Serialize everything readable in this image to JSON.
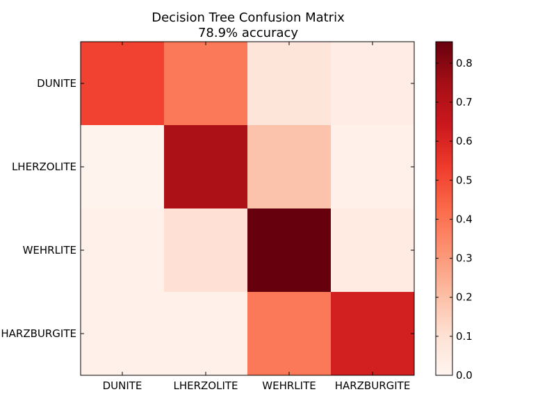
{
  "chart_data": {
    "type": "heatmap",
    "title": "Decision Tree Confusion Matrix",
    "subtitle": "78.9% accuracy",
    "x_categories": [
      "DUNITE",
      "LHERZOLITE",
      "WEHRLITE",
      "HARZBURGITE"
    ],
    "y_categories": [
      "DUNITE",
      "LHERZOLITE",
      "WEHRLITE",
      "HARZBURGITE"
    ],
    "values": [
      [
        0.52,
        0.39,
        0.08,
        0.04
      ],
      [
        0.01,
        0.73,
        0.19,
        0.02
      ],
      [
        0.02,
        0.1,
        0.86,
        0.05
      ],
      [
        0.02,
        0.02,
        0.39,
        0.62
      ]
    ],
    "colormap": "Reds",
    "value_range": [
      0.0,
      0.855
    ],
    "colorbar": {
      "position": "right",
      "ticks": [
        0.0,
        0.1,
        0.2,
        0.3,
        0.4,
        0.5,
        0.6,
        0.7,
        0.8
      ],
      "tick_labels": [
        "0.0",
        "0.1",
        "0.2",
        "0.3",
        "0.4",
        "0.5",
        "0.6",
        "0.7",
        "0.8"
      ]
    },
    "grid": false
  }
}
